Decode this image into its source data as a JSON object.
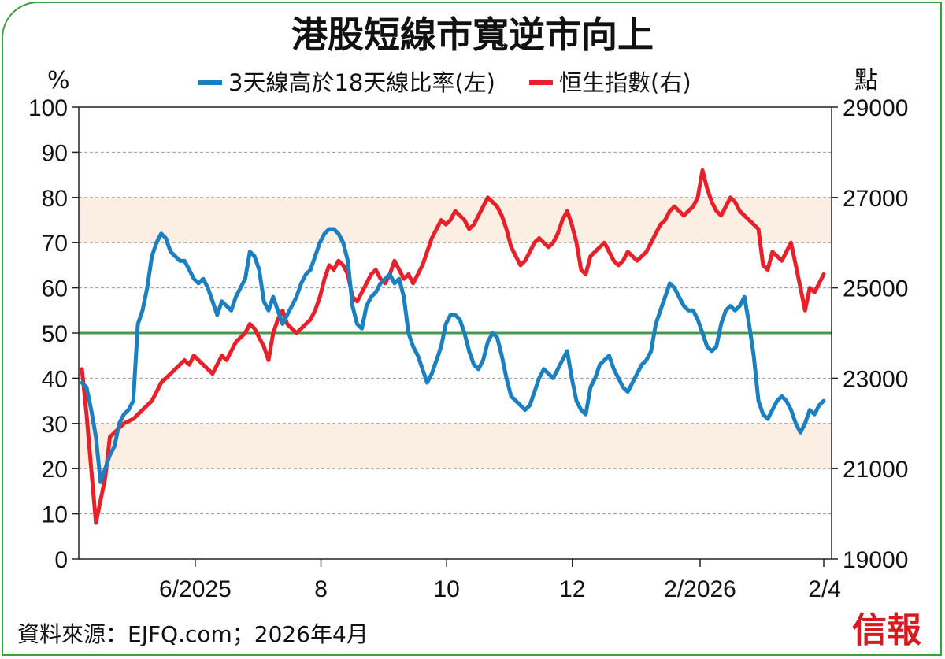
{
  "title": "港股短線市寬逆市向上",
  "left_unit": "%",
  "right_unit": "點",
  "source": "資料來源：EJFQ.com；2026年4月",
  "brand": "信報",
  "chart_data": {
    "type": "line",
    "x_axis": {
      "tick_labels": [
        "6/2025",
        "8",
        "10",
        "12",
        "2/2026",
        "2/4"
      ],
      "start": "2025-04-07",
      "end": "2026-04-02"
    },
    "y_left": {
      "range": [
        0,
        100
      ],
      "ticks": [
        0,
        10,
        20,
        30,
        40,
        50,
        60,
        70,
        80,
        90,
        100
      ]
    },
    "y_right": {
      "range": [
        19000,
        29000
      ],
      "ticks": [
        19000,
        21000,
        23000,
        25000,
        27000,
        29000
      ]
    },
    "reference_line": {
      "axis": "left",
      "value": 50,
      "color": "#3aa040"
    },
    "shaded_bands": [
      {
        "axis": "left",
        "from": 70,
        "to": 80,
        "color": "#fbeee2"
      },
      {
        "axis": "left",
        "from": 20,
        "to": 30,
        "color": "#fbeee2"
      }
    ],
    "grid": "horizontal dashed",
    "legend_position": "top",
    "series": [
      {
        "name": "3天線高於18天線比率(左)",
        "axis": "left",
        "color": "#1c7fc0",
        "values": [
          39,
          38,
          33,
          27,
          17,
          20,
          23,
          25,
          30,
          32,
          33,
          35,
          52,
          55,
          60,
          67,
          70,
          72,
          71,
          68,
          67,
          66,
          66,
          64,
          62,
          61,
          62,
          60,
          57,
          54,
          57,
          56,
          55,
          58,
          60,
          62,
          68,
          67,
          64,
          57,
          55,
          58,
          55,
          52,
          54,
          56,
          58,
          61,
          63,
          64,
          67,
          70,
          72,
          73,
          73,
          72,
          70,
          66,
          56,
          52,
          51,
          56,
          58,
          59,
          61,
          62,
          63,
          61,
          62,
          58,
          50,
          47,
          45,
          42,
          39,
          41,
          44,
          47,
          52,
          54,
          54,
          53,
          50,
          46,
          43,
          42,
          44,
          48,
          50,
          49,
          45,
          40,
          36,
          35,
          34,
          33,
          34,
          37,
          40,
          42,
          41,
          40,
          42,
          44,
          46,
          40,
          35,
          33,
          32,
          38,
          40,
          43,
          44,
          45,
          42,
          40,
          38,
          37,
          39,
          41,
          43,
          44,
          46,
          52,
          55,
          58,
          61,
          60,
          58,
          56,
          55,
          55,
          53,
          50,
          47,
          46,
          47,
          52,
          55,
          56,
          55,
          56,
          58,
          52,
          45,
          35,
          32,
          31,
          33,
          35,
          36,
          35,
          33,
          30,
          28,
          30,
          33,
          32,
          34,
          35
        ]
      },
      {
        "name": "恒生指數(右)",
        "axis": "right",
        "color": "#e8202a",
        "values": [
          23200,
          22200,
          21000,
          19800,
          20300,
          20800,
          21700,
          21800,
          21900,
          22000,
          22050,
          22100,
          22200,
          22300,
          22400,
          22500,
          22700,
          22900,
          23000,
          23100,
          23200,
          23300,
          23400,
          23300,
          23500,
          23400,
          23300,
          23200,
          23100,
          23300,
          23500,
          23400,
          23600,
          23800,
          23900,
          24000,
          24200,
          24100,
          23900,
          23700,
          23400,
          24000,
          24300,
          24500,
          24200,
          24100,
          24000,
          24100,
          24200,
          24300,
          24500,
          24800,
          25200,
          25500,
          25400,
          25600,
          25500,
          25300,
          24800,
          24700,
          24900,
          25100,
          25300,
          25400,
          25200,
          25100,
          25300,
          25600,
          25400,
          25200,
          25300,
          25100,
          25300,
          25500,
          25800,
          26100,
          26300,
          26500,
          26400,
          26500,
          26700,
          26600,
          26500,
          26300,
          26400,
          26600,
          26800,
          27000,
          26900,
          26800,
          26600,
          26300,
          25900,
          25700,
          25500,
          25600,
          25800,
          26000,
          26100,
          26000,
          25900,
          26000,
          26200,
          26500,
          26700,
          26400,
          26000,
          25400,
          25300,
          25700,
          25800,
          25900,
          26000,
          25800,
          25600,
          25500,
          25600,
          25800,
          25700,
          25600,
          25700,
          25800,
          26000,
          26200,
          26400,
          26500,
          26700,
          26800,
          26700,
          26600,
          26700,
          26800,
          27000,
          27600,
          27200,
          26900,
          26700,
          26600,
          26800,
          27000,
          26900,
          26700,
          26600,
          26500,
          26400,
          26300,
          25500,
          25400,
          25800,
          25700,
          25600,
          25800,
          26000,
          25500,
          25000,
          24500,
          25000,
          24900,
          25100,
          25300
        ]
      }
    ]
  }
}
